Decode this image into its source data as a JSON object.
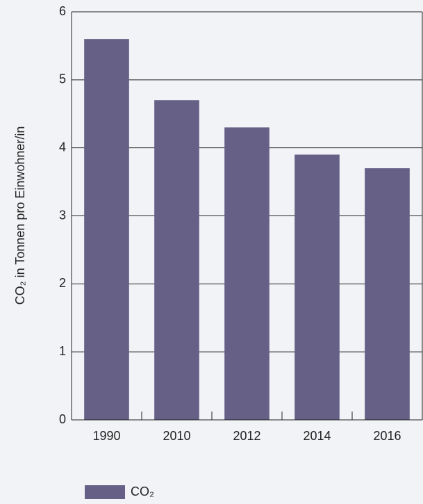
{
  "chart_data": {
    "type": "bar",
    "y_label": "CO₂ in Tonnen pro Einwohner/in",
    "categories": [
      "1990",
      "2010",
      "2012",
      "2014",
      "2016"
    ],
    "series": [
      {
        "name": "CO₂",
        "color": "#666087",
        "values": [
          5.6,
          4.7,
          4.3,
          3.9,
          3.7
        ]
      }
    ],
    "ylim": [
      0,
      6
    ],
    "yticks": [
      0,
      1,
      2,
      3,
      4,
      5,
      6
    ],
    "grid": true,
    "legend": "bottom"
  }
}
